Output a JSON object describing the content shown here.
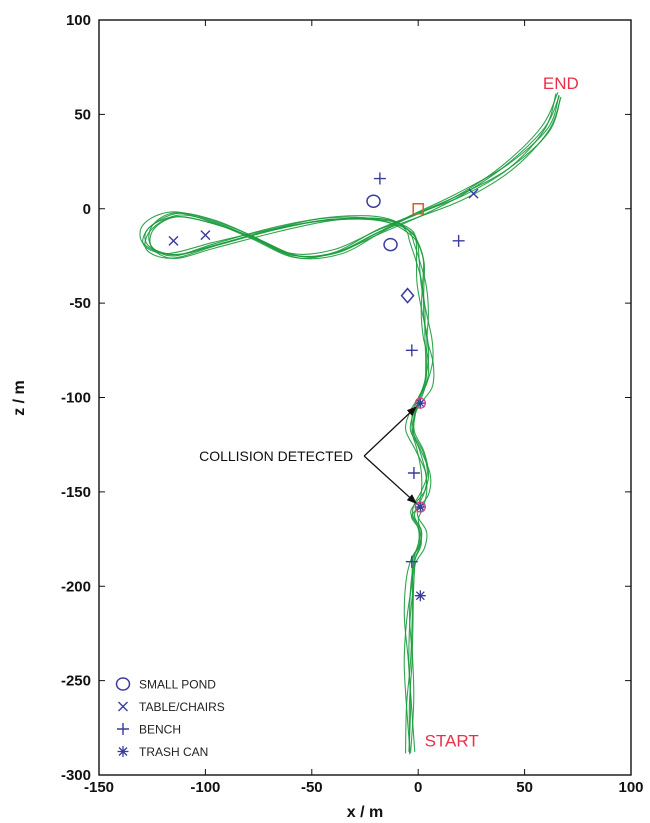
{
  "chart_data": {
    "type": "line",
    "title": "",
    "xlabel": "x / m",
    "ylabel": "z / m",
    "xlim": [
      -150,
      100
    ],
    "ylim": [
      -300,
      100
    ],
    "xticks": [
      -150,
      -100,
      -50,
      0,
      50,
      100
    ],
    "yticks": [
      -300,
      -250,
      -200,
      -150,
      -100,
      -50,
      0,
      50,
      100
    ],
    "grid": false,
    "colors": {
      "path": "#1a9b3c",
      "marker": "#3b3b9c",
      "label": "#e8304a",
      "goal": "#e05a20",
      "collision": "#e03c8c"
    },
    "path_labels": {
      "start": {
        "text": "START",
        "x": 3,
        "y": -285
      },
      "end": {
        "text": "END",
        "x": 68,
        "y": 66
      }
    },
    "path_center": [
      [
        -4,
        -288
      ],
      [
        -4,
        -262
      ],
      [
        -4,
        -240
      ],
      [
        -4,
        -218
      ],
      [
        -3,
        -198
      ],
      [
        -2,
        -186
      ],
      [
        1,
        -178
      ],
      [
        1,
        -170
      ],
      [
        -2,
        -163
      ],
      [
        0,
        -157
      ],
      [
        3,
        -150
      ],
      [
        4,
        -140
      ],
      [
        1,
        -128
      ],
      [
        -3,
        -118
      ],
      [
        -2,
        -108
      ],
      [
        1,
        -100
      ],
      [
        4,
        -92
      ],
      [
        5,
        -80
      ],
      [
        4,
        -68
      ],
      [
        3,
        -55
      ],
      [
        2,
        -40
      ],
      [
        1,
        -28
      ],
      [
        -1,
        -18
      ],
      [
        -4,
        -12
      ],
      [
        -12,
        -7
      ],
      [
        -25,
        -5
      ],
      [
        -45,
        -6
      ],
      [
        -68,
        -11
      ],
      [
        -95,
        -19
      ],
      [
        -115,
        -25
      ],
      [
        -127,
        -20
      ],
      [
        -126,
        -10
      ],
      [
        -114,
        -3
      ],
      [
        -96,
        -7
      ],
      [
        -78,
        -15
      ],
      [
        -58,
        -25
      ],
      [
        -38,
        -23
      ],
      [
        -18,
        -12
      ],
      [
        0,
        -3
      ],
      [
        20,
        7
      ],
      [
        42,
        22
      ],
      [
        60,
        42
      ],
      [
        66,
        60
      ]
    ],
    "path_repetitions": 6,
    "markers": {
      "small_pond": [
        {
          "shape": "circle",
          "x": -21,
          "y": 4
        },
        {
          "shape": "circle",
          "x": -13,
          "y": -19
        },
        {
          "shape": "diamond",
          "x": -5,
          "y": -46
        },
        {
          "shape": "square",
          "x": 0,
          "y": 0
        }
      ],
      "table_chairs": [
        {
          "x": -115,
          "y": -17
        },
        {
          "x": -100,
          "y": -14
        },
        {
          "x": 26,
          "y": 8
        }
      ],
      "bench": [
        {
          "x": -18,
          "y": 16
        },
        {
          "x": 19,
          "y": -17
        },
        {
          "x": -3,
          "y": -75
        },
        {
          "x": -2,
          "y": -140
        },
        {
          "x": -3,
          "y": -187
        }
      ],
      "trash_can": [
        {
          "x": 1,
          "y": -103
        },
        {
          "x": 1,
          "y": -158
        },
        {
          "x": 1,
          "y": -205
        }
      ]
    },
    "collisions": [
      {
        "x": 1,
        "y": -103
      },
      {
        "x": 1,
        "y": -158
      }
    ],
    "annotation": {
      "text": "COLLISION DETECTED",
      "anchor_x": -24,
      "anchor_y": -131,
      "targets": [
        [
          -1,
          -105
        ],
        [
          -1,
          -156
        ]
      ]
    },
    "legend": {
      "position": "bottom-left",
      "entries": [
        {
          "symbol": "circle",
          "label": "SMALL POND"
        },
        {
          "symbol": "x",
          "label": "TABLE/CHAIRS"
        },
        {
          "symbol": "plus",
          "label": "BENCH"
        },
        {
          "symbol": "star",
          "label": "TRASH CAN"
        }
      ]
    }
  }
}
